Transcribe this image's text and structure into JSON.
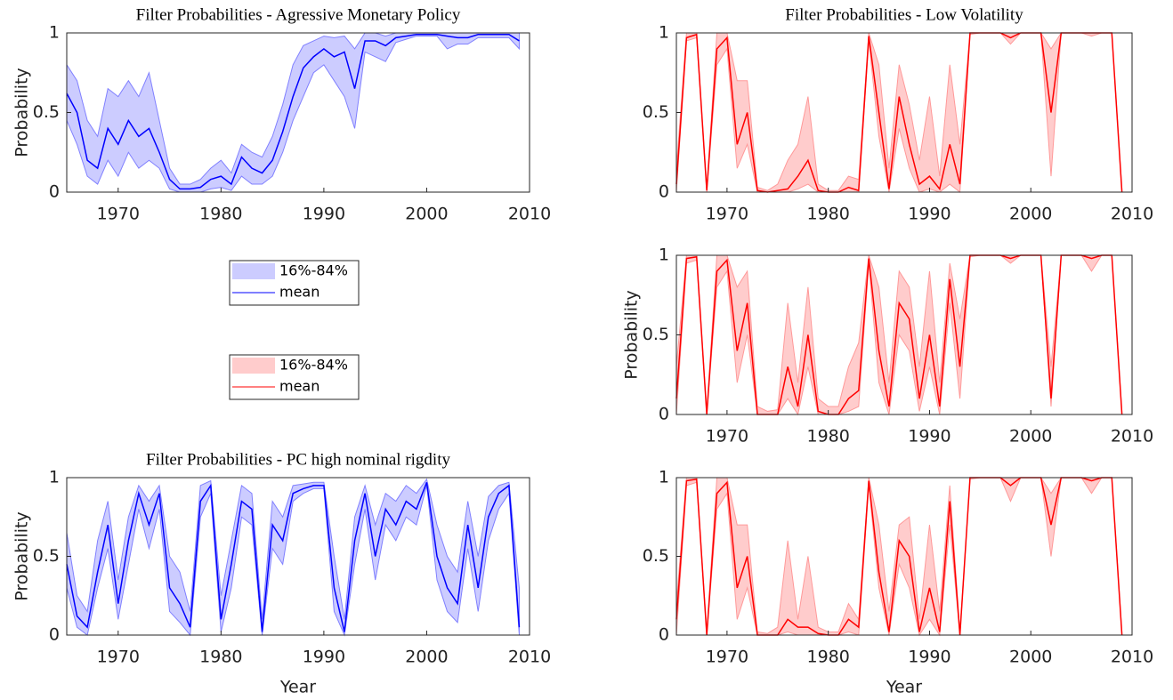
{
  "chart_data": [
    {
      "type": "line",
      "title": "Filter Probabilities - Agressive Monetary Policy",
      "ylabel": "Probability",
      "x": [
        1965,
        1966,
        1967,
        1968,
        1969,
        1970,
        1971,
        1972,
        1973,
        1974,
        1975,
        1976,
        1977,
        1978,
        1979,
        1980,
        1981,
        1982,
        1983,
        1984,
        1985,
        1986,
        1987,
        1988,
        1989,
        1990,
        1991,
        1992,
        1993,
        1994,
        1995,
        1996,
        1997,
        1998,
        1999,
        2000,
        2001,
        2002,
        2003,
        2004,
        2005,
        2006,
        2007,
        2008,
        2009
      ],
      "xlim": [
        1965,
        2010
      ],
      "xticks": [
        1970,
        1980,
        1990,
        2000,
        2010
      ],
      "ylim": [
        0,
        1
      ],
      "yticks": [
        0,
        0.5,
        1
      ],
      "legend": "outside-below",
      "series": [
        {
          "name": "16%-84%",
          "color": "#ccccff",
          "lower": [
            0.45,
            0.3,
            0.1,
            0.05,
            0.2,
            0.1,
            0.25,
            0.15,
            0.2,
            0.15,
            0.02,
            0,
            0,
            0,
            0.02,
            0.03,
            0.01,
            0.1,
            0.05,
            0.05,
            0.1,
            0.25,
            0.45,
            0.6,
            0.75,
            0.8,
            0.7,
            0.6,
            0.4,
            0.88,
            0.85,
            0.82,
            0.94,
            0.96,
            0.98,
            0.98,
            0.98,
            0.9,
            0.93,
            0.93,
            0.97,
            0.97,
            0.97,
            0.97,
            0.9
          ],
          "upper": [
            0.8,
            0.7,
            0.45,
            0.35,
            0.65,
            0.6,
            0.7,
            0.6,
            0.75,
            0.45,
            0.15,
            0.05,
            0.05,
            0.08,
            0.15,
            0.2,
            0.12,
            0.3,
            0.25,
            0.22,
            0.35,
            0.55,
            0.8,
            0.92,
            0.95,
            0.98,
            0.97,
            0.98,
            0.9,
            1,
            1,
            0.98,
            1,
            1,
            1,
            1,
            1,
            1,
            1,
            1,
            1,
            1,
            1,
            1,
            1
          ]
        },
        {
          "name": "mean",
          "color": "#0000ff",
          "values": [
            0.62,
            0.5,
            0.2,
            0.15,
            0.4,
            0.3,
            0.45,
            0.35,
            0.4,
            0.25,
            0.08,
            0.02,
            0.02,
            0.03,
            0.08,
            0.1,
            0.05,
            0.22,
            0.15,
            0.12,
            0.2,
            0.38,
            0.6,
            0.78,
            0.85,
            0.9,
            0.85,
            0.88,
            0.65,
            0.95,
            0.95,
            0.92,
            0.97,
            0.98,
            0.99,
            0.99,
            0.99,
            0.98,
            0.97,
            0.97,
            0.99,
            0.99,
            0.99,
            0.99,
            0.95
          ]
        }
      ]
    },
    {
      "type": "line",
      "title": "Filter Probabilities - Low Volatility",
      "x": [
        1965,
        1966,
        1967,
        1968,
        1969,
        1970,
        1971,
        1972,
        1973,
        1974,
        1975,
        1976,
        1977,
        1978,
        1979,
        1980,
        1981,
        1982,
        1983,
        1984,
        1985,
        1986,
        1987,
        1988,
        1989,
        1990,
        1991,
        1992,
        1993,
        1994,
        1995,
        1996,
        1997,
        1998,
        1999,
        2000,
        2001,
        2002,
        2003,
        2004,
        2005,
        2006,
        2007,
        2008,
        2009
      ],
      "xlim": [
        1965,
        2010
      ],
      "xticks": [
        1970,
        1980,
        1990,
        2000,
        2010
      ],
      "ylim": [
        0,
        1
      ],
      "yticks": [
        0,
        0.5,
        1
      ],
      "legend": "outside-left",
      "series": [
        {
          "name": "16%-84%",
          "color": "#ffcccc",
          "lower": [
            0,
            0.95,
            0.97,
            0,
            0.8,
            0.9,
            0.15,
            0.3,
            0,
            0,
            0,
            0,
            0.02,
            0.05,
            0,
            0,
            0,
            0,
            0,
            0.95,
            0.35,
            0,
            0.4,
            0.15,
            0,
            0.02,
            0,
            0.05,
            0,
            0.99,
            1,
            1,
            1,
            0.93,
            1,
            1,
            1,
            0.1,
            1,
            1,
            1,
            0.98,
            1,
            1,
            0
          ],
          "upper": [
            0.15,
            1,
            1,
            0.02,
            1,
            1,
            0.7,
            0.7,
            0.03,
            0.01,
            0.05,
            0.2,
            0.3,
            0.6,
            0.05,
            0.01,
            0.01,
            0.1,
            0.08,
            1,
            0.8,
            0.15,
            0.8,
            0.55,
            0.2,
            0.6,
            0.1,
            0.8,
            0.3,
            1,
            1,
            1,
            1,
            1,
            1,
            1,
            1,
            0.9,
            1,
            1,
            1,
            1,
            1,
            1,
            0.02
          ]
        },
        {
          "name": "mean",
          "color": "#ff0000",
          "values": [
            0.05,
            0.97,
            0.99,
            0.01,
            0.9,
            0.97,
            0.3,
            0.5,
            0.01,
            0,
            0.01,
            0.02,
            0.1,
            0.2,
            0.01,
            0,
            0,
            0.03,
            0.01,
            0.98,
            0.5,
            0.02,
            0.6,
            0.3,
            0.05,
            0.1,
            0.02,
            0.3,
            0.05,
            1,
            1,
            1,
            1,
            0.97,
            1,
            1,
            1,
            0.5,
            1,
            1,
            1,
            1,
            1,
            1,
            0
          ]
        }
      ]
    },
    {
      "type": "line",
      "ylabel": "Probability",
      "x": [
        1965,
        1966,
        1967,
        1968,
        1969,
        1970,
        1971,
        1972,
        1973,
        1974,
        1975,
        1976,
        1977,
        1978,
        1979,
        1980,
        1981,
        1982,
        1983,
        1984,
        1985,
        1986,
        1987,
        1988,
        1989,
        1990,
        1991,
        1992,
        1993,
        1994,
        1995,
        1996,
        1997,
        1998,
        1999,
        2000,
        2001,
        2002,
        2003,
        2004,
        2005,
        2006,
        2007,
        2008,
        2009
      ],
      "xlim": [
        1965,
        2010
      ],
      "xticks": [
        1970,
        1980,
        1990,
        2000,
        2010
      ],
      "ylim": [
        0,
        1
      ],
      "yticks": [
        0,
        0.5,
        1
      ],
      "series": [
        {
          "color": "#ffcccc",
          "lower": [
            0,
            0.95,
            0.97,
            0,
            0.8,
            0.9,
            0.2,
            0.5,
            0,
            0,
            0,
            0.1,
            0,
            0.3,
            0,
            0,
            0,
            0.02,
            0.05,
            0.95,
            0.2,
            0,
            0.5,
            0.4,
            0.02,
            0.3,
            0,
            0.7,
            0.1,
            0.99,
            1,
            1,
            1,
            0.95,
            1,
            1,
            1,
            0.05,
            1,
            1,
            1,
            0.9,
            1,
            1,
            0
          ],
          "upper": [
            0.3,
            1,
            1,
            0.02,
            1,
            1,
            0.8,
            0.9,
            0.05,
            0.02,
            0.03,
            0.7,
            0.2,
            0.8,
            0.1,
            0.05,
            0.05,
            0.3,
            0.45,
            1,
            0.8,
            0.2,
            0.9,
            0.8,
            0.3,
            0.9,
            0.2,
            0.95,
            0.6,
            1,
            1,
            1,
            1,
            1,
            1,
            1,
            1,
            0.3,
            1,
            1,
            1,
            1,
            1,
            1,
            0.02
          ]
        },
        {
          "color": "#ff0000",
          "values": [
            0.1,
            0.98,
            0.99,
            0,
            0.9,
            0.97,
            0.4,
            0.7,
            0,
            0,
            0,
            0.3,
            0.05,
            0.5,
            0.02,
            0,
            0,
            0.1,
            0.15,
            0.98,
            0.4,
            0.05,
            0.7,
            0.6,
            0.1,
            0.5,
            0.05,
            0.85,
            0.3,
            1,
            1,
            1,
            1,
            0.98,
            1,
            1,
            1,
            0.1,
            1,
            1,
            1,
            0.98,
            1,
            1,
            0
          ]
        }
      ]
    },
    {
      "type": "line",
      "title": "Filter Probabilities - PC high nominal rigdity",
      "ylabel": "Probability",
      "xlabel": "Year",
      "x": [
        1965,
        1966,
        1967,
        1968,
        1969,
        1970,
        1971,
        1972,
        1973,
        1974,
        1975,
        1976,
        1977,
        1978,
        1979,
        1980,
        1981,
        1982,
        1983,
        1984,
        1985,
        1986,
        1987,
        1988,
        1989,
        1990,
        1991,
        1992,
        1993,
        1994,
        1995,
        1996,
        1997,
        1998,
        1999,
        2000,
        2001,
        2002,
        2003,
        2004,
        2005,
        2006,
        2007,
        2008,
        2009
      ],
      "xlim": [
        1965,
        2010
      ],
      "xticks": [
        1970,
        1980,
        1990,
        2000,
        2010
      ],
      "ylim": [
        0,
        1
      ],
      "yticks": [
        0,
        0.5,
        1
      ],
      "series": [
        {
          "color": "#ccccff",
          "lower": [
            0.3,
            0.05,
            0,
            0.3,
            0.55,
            0.1,
            0.45,
            0.8,
            0.55,
            0.8,
            0.15,
            0.08,
            0,
            0.75,
            0.9,
            0.02,
            0.3,
            0.75,
            0.7,
            0,
            0.55,
            0.45,
            0.85,
            0.9,
            0.93,
            0.93,
            0.15,
            0,
            0.45,
            0.8,
            0.35,
            0.7,
            0.6,
            0.75,
            0.7,
            0.95,
            0.35,
            0.15,
            0.08,
            0.55,
            0.15,
            0.6,
            0.8,
            0.9,
            0
          ],
          "upper": [
            0.65,
            0.25,
            0.15,
            0.6,
            0.85,
            0.35,
            0.75,
            0.95,
            0.85,
            0.95,
            0.5,
            0.4,
            0.15,
            0.95,
            0.98,
            0.25,
            0.6,
            0.95,
            0.9,
            0.1,
            0.85,
            0.75,
            0.95,
            0.96,
            0.97,
            0.97,
            0.5,
            0.1,
            0.75,
            0.95,
            0.7,
            0.9,
            0.85,
            0.95,
            0.9,
            0.99,
            0.7,
            0.5,
            0.4,
            0.85,
            0.5,
            0.88,
            0.95,
            0.97,
            0.3
          ]
        },
        {
          "color": "#0000ff",
          "values": [
            0.45,
            0.12,
            0.05,
            0.4,
            0.7,
            0.2,
            0.6,
            0.9,
            0.7,
            0.9,
            0.3,
            0.2,
            0.05,
            0.85,
            0.95,
            0.1,
            0.45,
            0.85,
            0.8,
            0.02,
            0.7,
            0.6,
            0.9,
            0.93,
            0.95,
            0.95,
            0.3,
            0.02,
            0.6,
            0.9,
            0.5,
            0.8,
            0.7,
            0.85,
            0.8,
            0.97,
            0.5,
            0.3,
            0.2,
            0.7,
            0.3,
            0.75,
            0.9,
            0.95,
            0.05
          ]
        }
      ]
    },
    {
      "type": "line",
      "xlabel": "Year",
      "x": [
        1965,
        1966,
        1967,
        1968,
        1969,
        1970,
        1971,
        1972,
        1973,
        1974,
        1975,
        1976,
        1977,
        1978,
        1979,
        1980,
        1981,
        1982,
        1983,
        1984,
        1985,
        1986,
        1987,
        1988,
        1989,
        1990,
        1991,
        1992,
        1993,
        1994,
        1995,
        1996,
        1997,
        1998,
        1999,
        2000,
        2001,
        2002,
        2003,
        2004,
        2005,
        2006,
        2007,
        2008,
        2009
      ],
      "xlim": [
        1965,
        2010
      ],
      "xticks": [
        1970,
        1980,
        1990,
        2000,
        2010
      ],
      "ylim": [
        0,
        1
      ],
      "yticks": [
        0,
        0.5,
        1
      ],
      "series": [
        {
          "color": "#ffcccc",
          "lower": [
            0,
            0.95,
            0.97,
            0,
            0.8,
            0.9,
            0.1,
            0.3,
            0,
            0,
            0,
            0.02,
            0,
            0,
            0,
            0,
            0,
            0.02,
            0,
            0.95,
            0.3,
            0,
            0.45,
            0.3,
            0,
            0.1,
            0,
            0.7,
            0,
            0.99,
            1,
            1,
            1,
            0.85,
            1,
            1,
            1,
            0.5,
            1,
            1,
            1,
            0.9,
            1,
            1,
            0
          ],
          "upper": [
            0.2,
            1,
            1,
            0.02,
            1,
            1,
            0.7,
            0.7,
            0.02,
            0.01,
            0.05,
            0.6,
            0.1,
            0.5,
            0.05,
            0.02,
            0.02,
            0.2,
            0.1,
            1,
            0.7,
            0.15,
            0.7,
            0.75,
            0.1,
            0.7,
            0.15,
            0.95,
            0.02,
            1,
            1,
            1,
            1,
            1,
            1,
            1,
            1,
            0.9,
            1,
            1,
            1,
            1,
            1,
            1,
            0.02
          ]
        },
        {
          "color": "#ff0000",
          "values": [
            0.1,
            0.98,
            0.99,
            0,
            0.9,
            0.97,
            0.3,
            0.5,
            0,
            0,
            0,
            0.1,
            0.05,
            0.05,
            0.01,
            0,
            0,
            0.1,
            0.05,
            0.98,
            0.4,
            0.02,
            0.6,
            0.5,
            0.02,
            0.3,
            0.02,
            0.85,
            0,
            1,
            1,
            1,
            1,
            0.95,
            1,
            1,
            1,
            0.7,
            1,
            1,
            1,
            0.98,
            1,
            1,
            0
          ]
        }
      ]
    }
  ]
}
